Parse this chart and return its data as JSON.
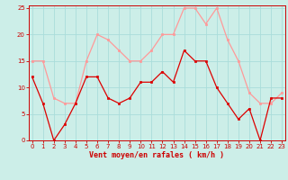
{
  "hours": [
    0,
    1,
    2,
    3,
    4,
    5,
    6,
    7,
    8,
    9,
    10,
    11,
    12,
    13,
    14,
    15,
    16,
    17,
    18,
    19,
    20,
    21,
    22,
    23
  ],
  "vent_moyen": [
    12,
    7,
    0,
    3,
    7,
    12,
    12,
    8,
    7,
    8,
    11,
    11,
    13,
    11,
    17,
    15,
    15,
    10,
    7,
    4,
    6,
    0,
    8,
    8
  ],
  "rafales": [
    15,
    15,
    8,
    7,
    7,
    15,
    20,
    19,
    17,
    15,
    15,
    17,
    20,
    20,
    25,
    25,
    22,
    25,
    19,
    15,
    9,
    7,
    7,
    9
  ],
  "bg_color": "#cceee8",
  "grid_color": "#aaddda",
  "line_moyen_color": "#dd0000",
  "line_rafales_color": "#ff9999",
  "xlabel": "Vent moyen/en rafales ( km/h )",
  "ylim": [
    0,
    25
  ],
  "xlim": [
    0,
    23
  ],
  "yticks": [
    0,
    5,
    10,
    15,
    20,
    25
  ],
  "xticks": [
    0,
    1,
    2,
    3,
    4,
    5,
    6,
    7,
    8,
    9,
    10,
    11,
    12,
    13,
    14,
    15,
    16,
    17,
    18,
    19,
    20,
    21,
    22,
    23
  ]
}
